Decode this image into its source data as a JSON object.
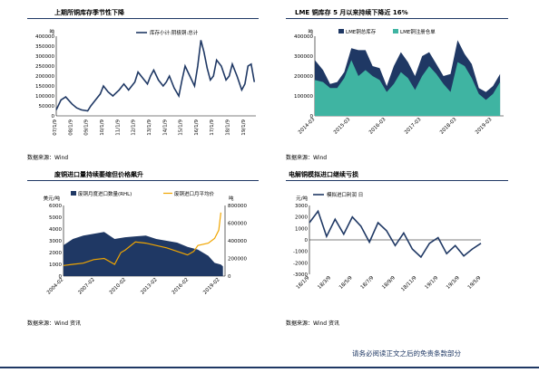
{
  "panels": [
    {
      "title": "上期所铜库存季节性下降",
      "source": "数据来源：Wind"
    },
    {
      "title": "LME 铜库存 5 月以来持续下降近 16%",
      "source": "数据来源：Wind"
    },
    {
      "title": "废铜进口量持续萎缩但价格飙升",
      "source": "数据来源：Wind 资讯"
    },
    {
      "title": "电解铜模拟进口继续亏损",
      "source": "数据来源：Wind 资讯"
    }
  ],
  "footer": {
    "disclaimer": "请务必阅读正文之后的免责条款部分"
  },
  "chart_data": [
    {
      "type": "line",
      "ylabel": "吨",
      "ylim": [
        0,
        400000
      ],
      "yticks": [
        0,
        50000,
        100000,
        150000,
        200000,
        250000,
        300000,
        350000,
        400000
      ],
      "xticks": [
        "07/1/9",
        "08/1/9",
        "09/1/9",
        "10/1/9",
        "11/1/9",
        "12/1/9",
        "13/1/9",
        "14/1/9",
        "15/1/9",
        "16/1/9",
        "17/1/9",
        "18/1/9",
        "19/1/9"
      ],
      "legend": [
        "库存小计:阴极铜:总计"
      ],
      "legend_position": "top-center",
      "series_color": "#1f3864",
      "series": [
        {
          "name": "库存小计:阴极铜:总计",
          "x": [
            2007.0,
            2007.3,
            2007.6,
            2008.0,
            2008.3,
            2008.6,
            2009.0,
            2009.2,
            2009.5,
            2009.8,
            2010.0,
            2010.3,
            2010.6,
            2011.0,
            2011.3,
            2011.6,
            2012.0,
            2012.2,
            2012.5,
            2012.8,
            2013.0,
            2013.2,
            2013.5,
            2013.8,
            2014.0,
            2014.2,
            2014.5,
            2014.8,
            2015.0,
            2015.2,
            2015.5,
            2015.8,
            2016.0,
            2016.2,
            2016.4,
            2016.6,
            2016.8,
            2017.0,
            2017.2,
            2017.5,
            2017.8,
            2018.0,
            2018.2,
            2018.5,
            2018.8,
            2019.0,
            2019.2,
            2019.4,
            2019.6
          ],
          "y": [
            30000,
            80000,
            95000,
            60000,
            40000,
            30000,
            25000,
            50000,
            80000,
            110000,
            150000,
            120000,
            100000,
            130000,
            160000,
            130000,
            170000,
            220000,
            190000,
            160000,
            200000,
            230000,
            180000,
            150000,
            170000,
            200000,
            140000,
            100000,
            180000,
            250000,
            200000,
            150000,
            250000,
            380000,
            320000,
            240000,
            180000,
            200000,
            280000,
            250000,
            180000,
            200000,
            260000,
            200000,
            130000,
            160000,
            250000,
            260000,
            170000
          ]
        }
      ]
    },
    {
      "type": "area",
      "ylabel": "吨",
      "ylim": [
        0,
        400000
      ],
      "yticks": [
        0,
        100000,
        200000,
        300000,
        400000
      ],
      "xticks": [
        "2014-03",
        "2015-03",
        "2016-03",
        "2017-03",
        "2018-03",
        "2019-03"
      ],
      "legend": [
        "LME铜总库存",
        "LME铜注册仓单"
      ],
      "legend_position": "top-center",
      "colors": [
        "#1f3864",
        "#3fb4a2"
      ],
      "series": [
        {
          "name": "LME铜总库存",
          "x": [
            2014.17,
            2014.4,
            2014.6,
            2014.8,
            2015.0,
            2015.2,
            2015.4,
            2015.6,
            2015.8,
            2016.0,
            2016.2,
            2016.4,
            2016.6,
            2016.8,
            2017.0,
            2017.2,
            2017.4,
            2017.6,
            2017.8,
            2018.0,
            2018.2,
            2018.4,
            2018.6,
            2018.8,
            2019.0,
            2019.2,
            2019.4
          ],
          "y": [
            280000,
            230000,
            160000,
            170000,
            220000,
            340000,
            330000,
            330000,
            250000,
            240000,
            150000,
            250000,
            320000,
            270000,
            200000,
            300000,
            320000,
            260000,
            200000,
            210000,
            380000,
            310000,
            260000,
            140000,
            120000,
            150000,
            210000
          ]
        },
        {
          "name": "LME铜注册仓单",
          "x": [
            2014.17,
            2014.4,
            2014.6,
            2014.8,
            2015.0,
            2015.2,
            2015.4,
            2015.6,
            2015.8,
            2016.0,
            2016.2,
            2016.4,
            2016.6,
            2016.8,
            2017.0,
            2017.2,
            2017.4,
            2017.6,
            2017.8,
            2018.0,
            2018.2,
            2018.4,
            2018.6,
            2018.8,
            2019.0,
            2019.2,
            2019.4
          ],
          "y": [
            180000,
            170000,
            140000,
            140000,
            190000,
            280000,
            200000,
            230000,
            200000,
            180000,
            120000,
            160000,
            220000,
            190000,
            130000,
            200000,
            250000,
            210000,
            160000,
            120000,
            270000,
            250000,
            190000,
            110000,
            80000,
            110000,
            170000
          ]
        }
      ]
    },
    {
      "type": "bar",
      "ylabel": "美元/吨",
      "y2label": "吨",
      "ylim": [
        0,
        6000
      ],
      "yticks": [
        0,
        1000,
        2000,
        3000,
        4000,
        5000,
        6000
      ],
      "y2lim": [
        0,
        800000
      ],
      "y2ticks": [
        0,
        200000,
        400000,
        600000,
        800000
      ],
      "xticks": [
        "2004-02",
        "2007-02",
        "2010-02",
        "2013-02",
        "2016-02",
        "2019-02"
      ],
      "legend": [
        "废铜月度进口数量(RHL)",
        "废铜进口月平均价"
      ],
      "legend_position": "top-center",
      "colors": [
        "#1f3864",
        "#f0a500"
      ],
      "series": [
        {
          "name": "废铜月度进口数量(RHL)",
          "axis": "right",
          "x": [
            2004.1,
            2005.0,
            2006.0,
            2007.0,
            2008.0,
            2009.0,
            2010.0,
            2011.0,
            2012.0,
            2013.0,
            2014.0,
            2015.0,
            2016.0,
            2017.0,
            2018.0,
            2018.6,
            2019.2,
            2019.4
          ],
          "y": [
            350000,
            420000,
            460000,
            480000,
            500000,
            420000,
            440000,
            450000,
            460000,
            420000,
            400000,
            380000,
            330000,
            300000,
            230000,
            150000,
            130000,
            110000
          ]
        },
        {
          "name": "废铜进口月平均价",
          "axis": "left",
          "x": [
            2004.1,
            2005.0,
            2006.0,
            2007.0,
            2008.0,
            2009.0,
            2009.6,
            2010.0,
            2011.0,
            2012.0,
            2013.0,
            2014.0,
            2015.0,
            2016.0,
            2016.6,
            2017.0,
            2018.0,
            2018.6,
            2019.0,
            2019.2
          ],
          "y": [
            900,
            1000,
            1100,
            1400,
            1500,
            1000,
            2000,
            2200,
            2900,
            2800,
            2600,
            2400,
            2100,
            1800,
            2100,
            2600,
            2800,
            3200,
            3900,
            5400
          ]
        }
      ]
    },
    {
      "type": "line",
      "ylabel": "元/吨",
      "ylim": [
        -3000,
        3000
      ],
      "yticks": [
        -3000,
        -2000,
        -1000,
        0,
        1000,
        2000,
        3000
      ],
      "xticks": [
        "18/1/9",
        "18/3/9",
        "18/5/9",
        "18/7/9",
        "18/9/9",
        "18/11/9",
        "19/1/9",
        "19/3/9",
        "19/5/9"
      ],
      "legend": [
        "模拟进口利润 日"
      ],
      "legend_position": "top-left",
      "series_color": "#1f3864",
      "series": [
        {
          "name": "模拟进口利润 日",
          "x": [
            0,
            0.4,
            0.8,
            1.2,
            1.6,
            2.0,
            2.4,
            2.8,
            3.2,
            3.6,
            4.0,
            4.4,
            4.8,
            5.2,
            5.6,
            6.0,
            6.4,
            6.8,
            7.2,
            7.6,
            8.0
          ],
          "y": [
            1500,
            2500,
            300,
            1800,
            500,
            2000,
            1200,
            -200,
            1500,
            800,
            -500,
            600,
            -800,
            -1500,
            -300,
            200,
            -1200,
            -500,
            -1400,
            -800,
            -300
          ]
        }
      ]
    }
  ]
}
